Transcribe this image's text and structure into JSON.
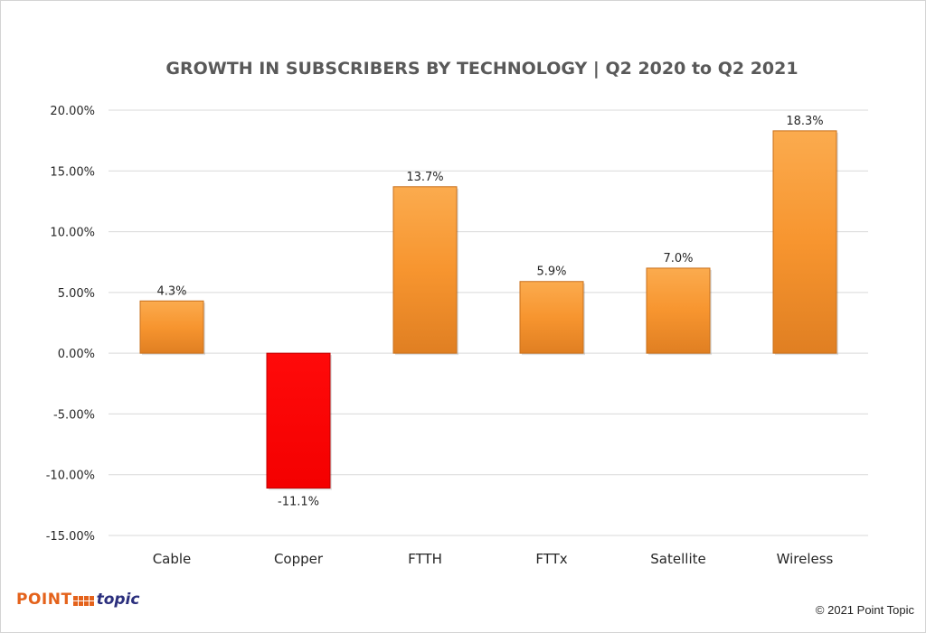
{
  "chart_data": {
    "type": "bar",
    "title": "GROWTH IN SUBSCRIBERS BY TECHNOLOGY  |  Q2 2020 to Q2 2021",
    "xlabel": "",
    "ylabel": "",
    "categories": [
      "Cable",
      "Copper",
      "FTTH",
      "FTTx",
      "Satellite",
      "Wireless"
    ],
    "values": [
      4.3,
      -11.1,
      13.7,
      5.9,
      7.0,
      18.3
    ],
    "data_labels": [
      "4.3%",
      "-11.1%",
      "13.7%",
      "5.9%",
      "7.0%",
      "18.3%"
    ],
    "ylim": [
      -15,
      20
    ],
    "yticks": [
      20,
      15,
      10,
      5,
      0,
      -5,
      -10,
      -15
    ],
    "ytick_labels": [
      "20.00%",
      "15.00%",
      "10.00%",
      "5.00%",
      "0.00%",
      "-5.00%",
      "-10.00%",
      "-15.00%"
    ],
    "grid": true,
    "legend": "none",
    "colors": {
      "positive": "#f7952f",
      "negative": "#ff0000"
    }
  },
  "footer": {
    "logo_point": "POINT",
    "logo_topic": "topic",
    "copyright": "© 2021 Point Topic"
  }
}
